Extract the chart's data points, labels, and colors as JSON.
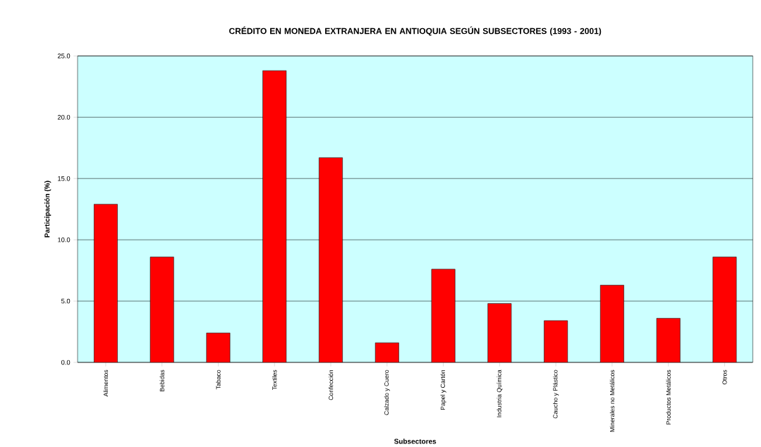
{
  "chart_data": {
    "type": "bar",
    "title": "CRÉDITO EN MONEDA EXTRANJERA EN ANTIOQUIA SEGÚN SUBSECTORES (1993 - 2001)",
    "xlabel": "Subsectores",
    "ylabel": "Participación (%)",
    "categories": [
      "Alimentos",
      "Bebidas",
      "Tabaco",
      "Textiles",
      "Confección",
      "Calzado y Cuero",
      "Papel y Cartón",
      "Industria Química",
      "Caucho y Plástico",
      "Minerales no Metálicos",
      "Productos Metálicos",
      "Otros"
    ],
    "values": [
      12.9,
      8.6,
      2.4,
      23.8,
      16.7,
      1.6,
      7.6,
      4.8,
      3.4,
      6.3,
      3.6,
      8.6
    ],
    "color": "#ff0000",
    "ylim": [
      0,
      25
    ],
    "yticks": [
      {
        "value": 0,
        "label": "0.0"
      },
      {
        "value": 5,
        "label": "5.0"
      },
      {
        "value": 10,
        "label": "10.0"
      },
      {
        "value": 15,
        "label": "15.0"
      },
      {
        "value": 20,
        "label": "20.0"
      },
      {
        "value": 25,
        "label": "25.0"
      }
    ],
    "grid": "y"
  }
}
